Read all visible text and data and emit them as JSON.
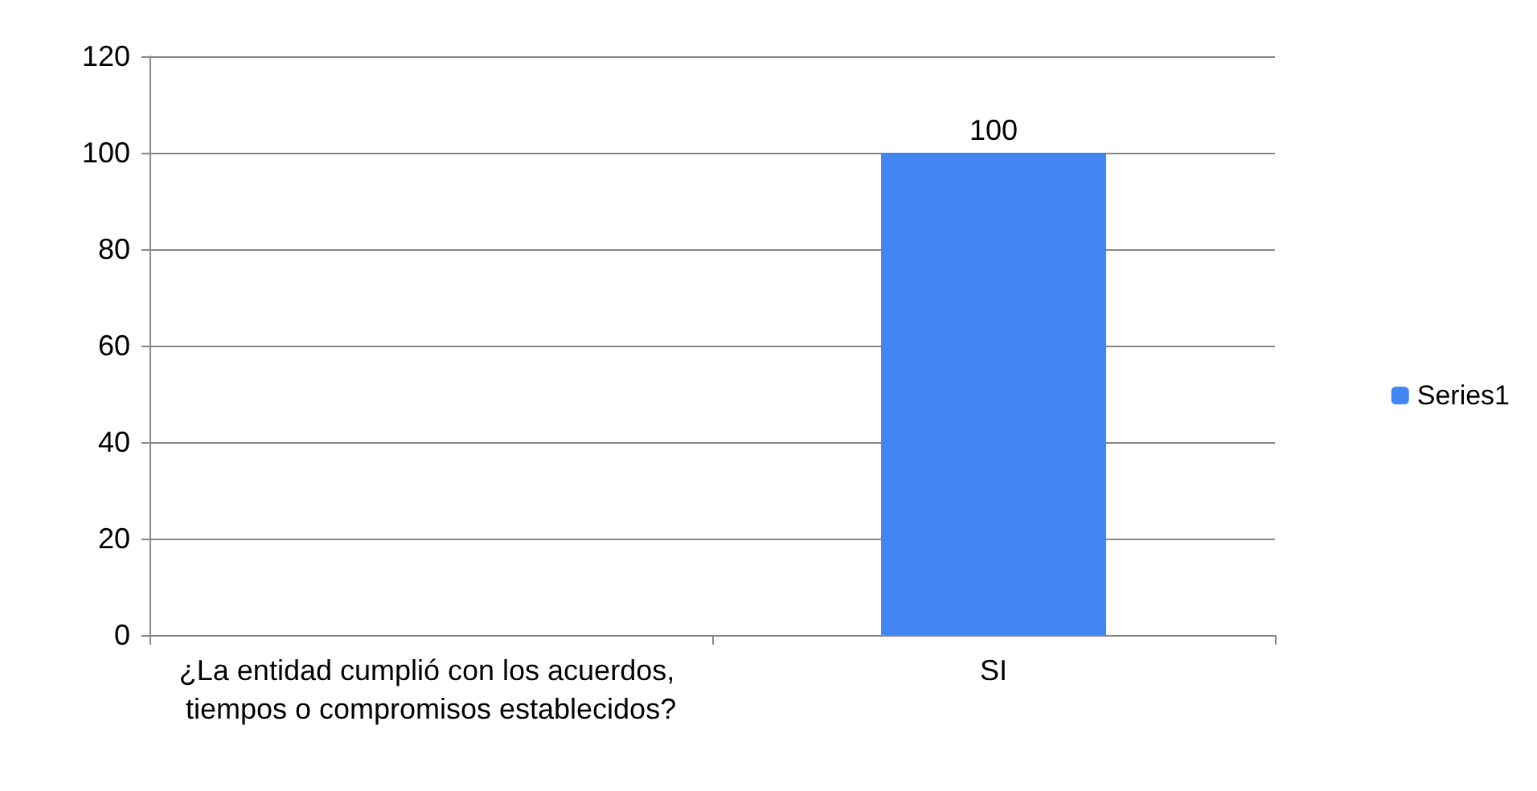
{
  "chart_data": {
    "type": "bar",
    "categories": [
      "¿La entidad cumplió con los acuerdos, tiempos o compromisos establecidos?",
      "SI"
    ],
    "series": [
      {
        "name": "Series1",
        "color": "#4286f4",
        "values": [
          null,
          100
        ]
      }
    ],
    "value_labels": [
      null,
      "100"
    ],
    "ylim": [
      0,
      120
    ],
    "yticks": [
      0,
      20,
      40,
      60,
      80,
      100,
      120
    ],
    "grid": "y",
    "legend": "right"
  }
}
